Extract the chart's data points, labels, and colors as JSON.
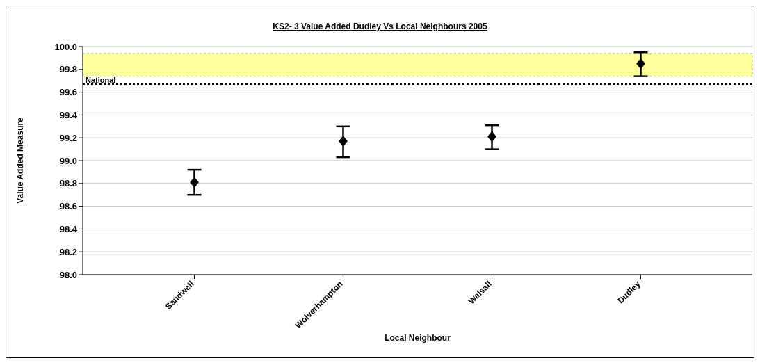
{
  "chart_data": {
    "type": "scatter",
    "title": "KS2- 3 Value Added Dudley Vs Local Neighbours 2005",
    "xlabel": "Local Neighbour",
    "ylabel": "Value Added Measure",
    "categories": [
      "Sandwell",
      "Wolverhampton",
      "Walsall",
      "Dudley"
    ],
    "values": [
      98.81,
      99.17,
      99.21,
      99.85
    ],
    "errors": [
      [
        98.7,
        98.92
      ],
      [
        99.03,
        99.3
      ],
      [
        99.1,
        99.31
      ],
      [
        99.74,
        99.95
      ]
    ],
    "color": "#000000",
    "marker": "diamond",
    "ylim": [
      98.0,
      100.0
    ],
    "yticks": [
      {
        "value": 98.0,
        "label": "98.0"
      },
      {
        "value": 98.2,
        "label": "98.2"
      },
      {
        "value": 98.4,
        "label": "98.4"
      },
      {
        "value": 98.6,
        "label": "98.6"
      },
      {
        "value": 98.8,
        "label": "98.8"
      },
      {
        "value": 99.0,
        "label": "99.0"
      },
      {
        "value": 99.2,
        "label": "99.2"
      },
      {
        "value": 99.4,
        "label": "99.4"
      },
      {
        "value": 99.6,
        "label": "99.6"
      },
      {
        "value": 99.8,
        "label": "99.8"
      },
      {
        "value": 100.0,
        "label": "100.0"
      }
    ],
    "grid": "y",
    "ref_lines": [
      {
        "axis": "y",
        "value": 99.67,
        "label": "National",
        "color": "#000000",
        "line_style": "dotted"
      }
    ],
    "bands": [
      {
        "axis": "y",
        "from": 99.74,
        "to": 99.94,
        "color": "#ffff99"
      }
    ]
  }
}
